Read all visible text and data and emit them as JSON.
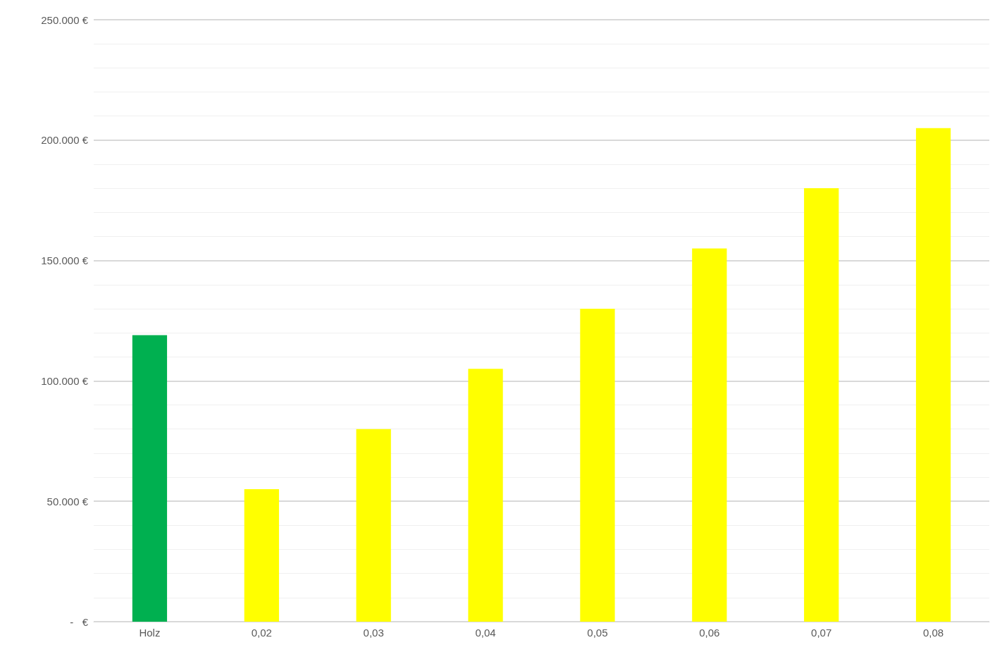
{
  "chart_data": {
    "type": "bar",
    "categories": [
      "Holz",
      "0,02",
      "0,03",
      "0,04",
      "0,05",
      "0,06",
      "0,07",
      "0,08"
    ],
    "values": [
      119000,
      55000,
      80000,
      105000,
      130000,
      155000,
      180000,
      205000
    ],
    "colors": [
      "#00b050",
      "#ffff00",
      "#ffff00",
      "#ffff00",
      "#ffff00",
      "#ffff00",
      "#ffff00",
      "#ffff00"
    ],
    "ylim": [
      0,
      250000
    ],
    "yticks": [
      {
        "value": 0,
        "label": "-   €"
      },
      {
        "value": 50000,
        "label": "50.000 €"
      },
      {
        "value": 100000,
        "label": "100.000 €"
      },
      {
        "value": 150000,
        "label": "150.000 €"
      },
      {
        "value": 200000,
        "label": "200.000 €"
      },
      {
        "value": 250000,
        "label": "250.000 €"
      }
    ],
    "grid": "y"
  }
}
